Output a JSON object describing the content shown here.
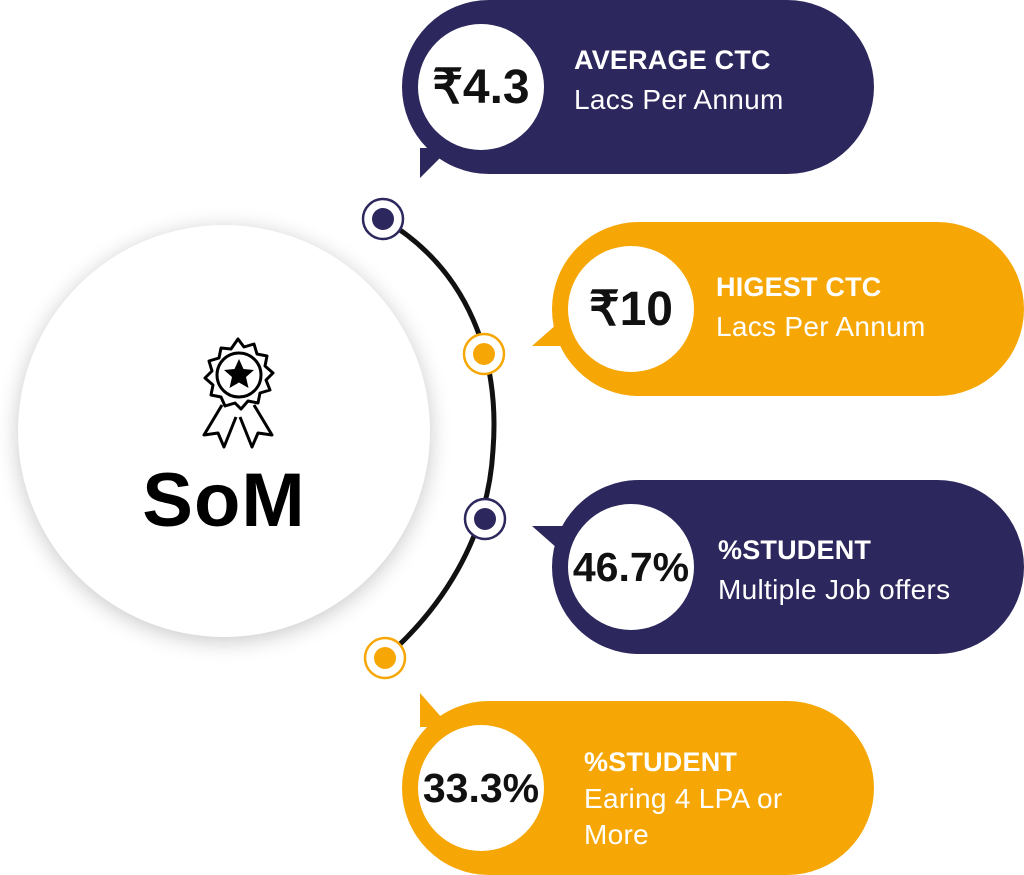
{
  "center": {
    "label": "SoM",
    "icon": "award-ribbon-icon"
  },
  "colors": {
    "navy": "#2c275c",
    "gold": "#f6a705",
    "line": "#111111"
  },
  "cards": [
    {
      "value": "₹4.3",
      "title": "AVERAGE CTC",
      "subtitle": "Lacs Per Annum",
      "color": "navy"
    },
    {
      "value": "₹10",
      "title": "HIGEST CTC",
      "subtitle": "Lacs Per Annum",
      "color": "gold"
    },
    {
      "value": "46.7%",
      "title": "%STUDENT",
      "subtitle": "Multiple Job offers",
      "color": "navy"
    },
    {
      "value": "33.3%",
      "title": "%STUDENT",
      "subtitle": "Earing 4 LPA or More",
      "color": "gold"
    }
  ]
}
